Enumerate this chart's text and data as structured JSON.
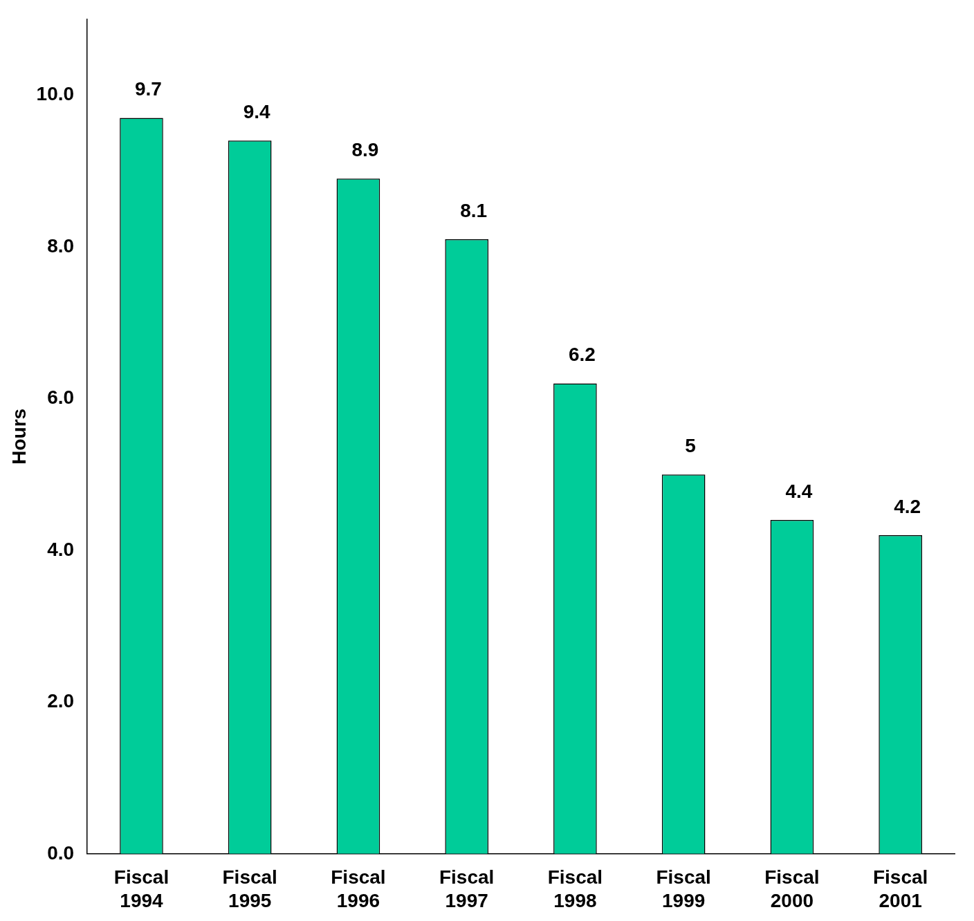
{
  "chart_data": {
    "type": "bar",
    "ylabel": "Hours",
    "categories": [
      "Fiscal 1994",
      "Fiscal 1995",
      "Fiscal 1996",
      "Fiscal 1997",
      "Fiscal 1998",
      "Fiscal 1999",
      "Fiscal 2000",
      "Fiscal 2001"
    ],
    "values": [
      9.7,
      9.4,
      8.9,
      8.1,
      6.2,
      5,
      4.4,
      4.2
    ],
    "color": "#00cc99",
    "ylim": [
      0,
      11
    ],
    "yticks": [
      {
        "value": 0,
        "label": "0.0"
      },
      {
        "value": 2,
        "label": "2.0"
      },
      {
        "value": 4,
        "label": "4.0"
      },
      {
        "value": 6,
        "label": "6.0"
      },
      {
        "value": 8,
        "label": "8.0"
      },
      {
        "value": 10,
        "label": "10.0"
      }
    ],
    "data_labels": true,
    "grid": false,
    "legend": false
  }
}
